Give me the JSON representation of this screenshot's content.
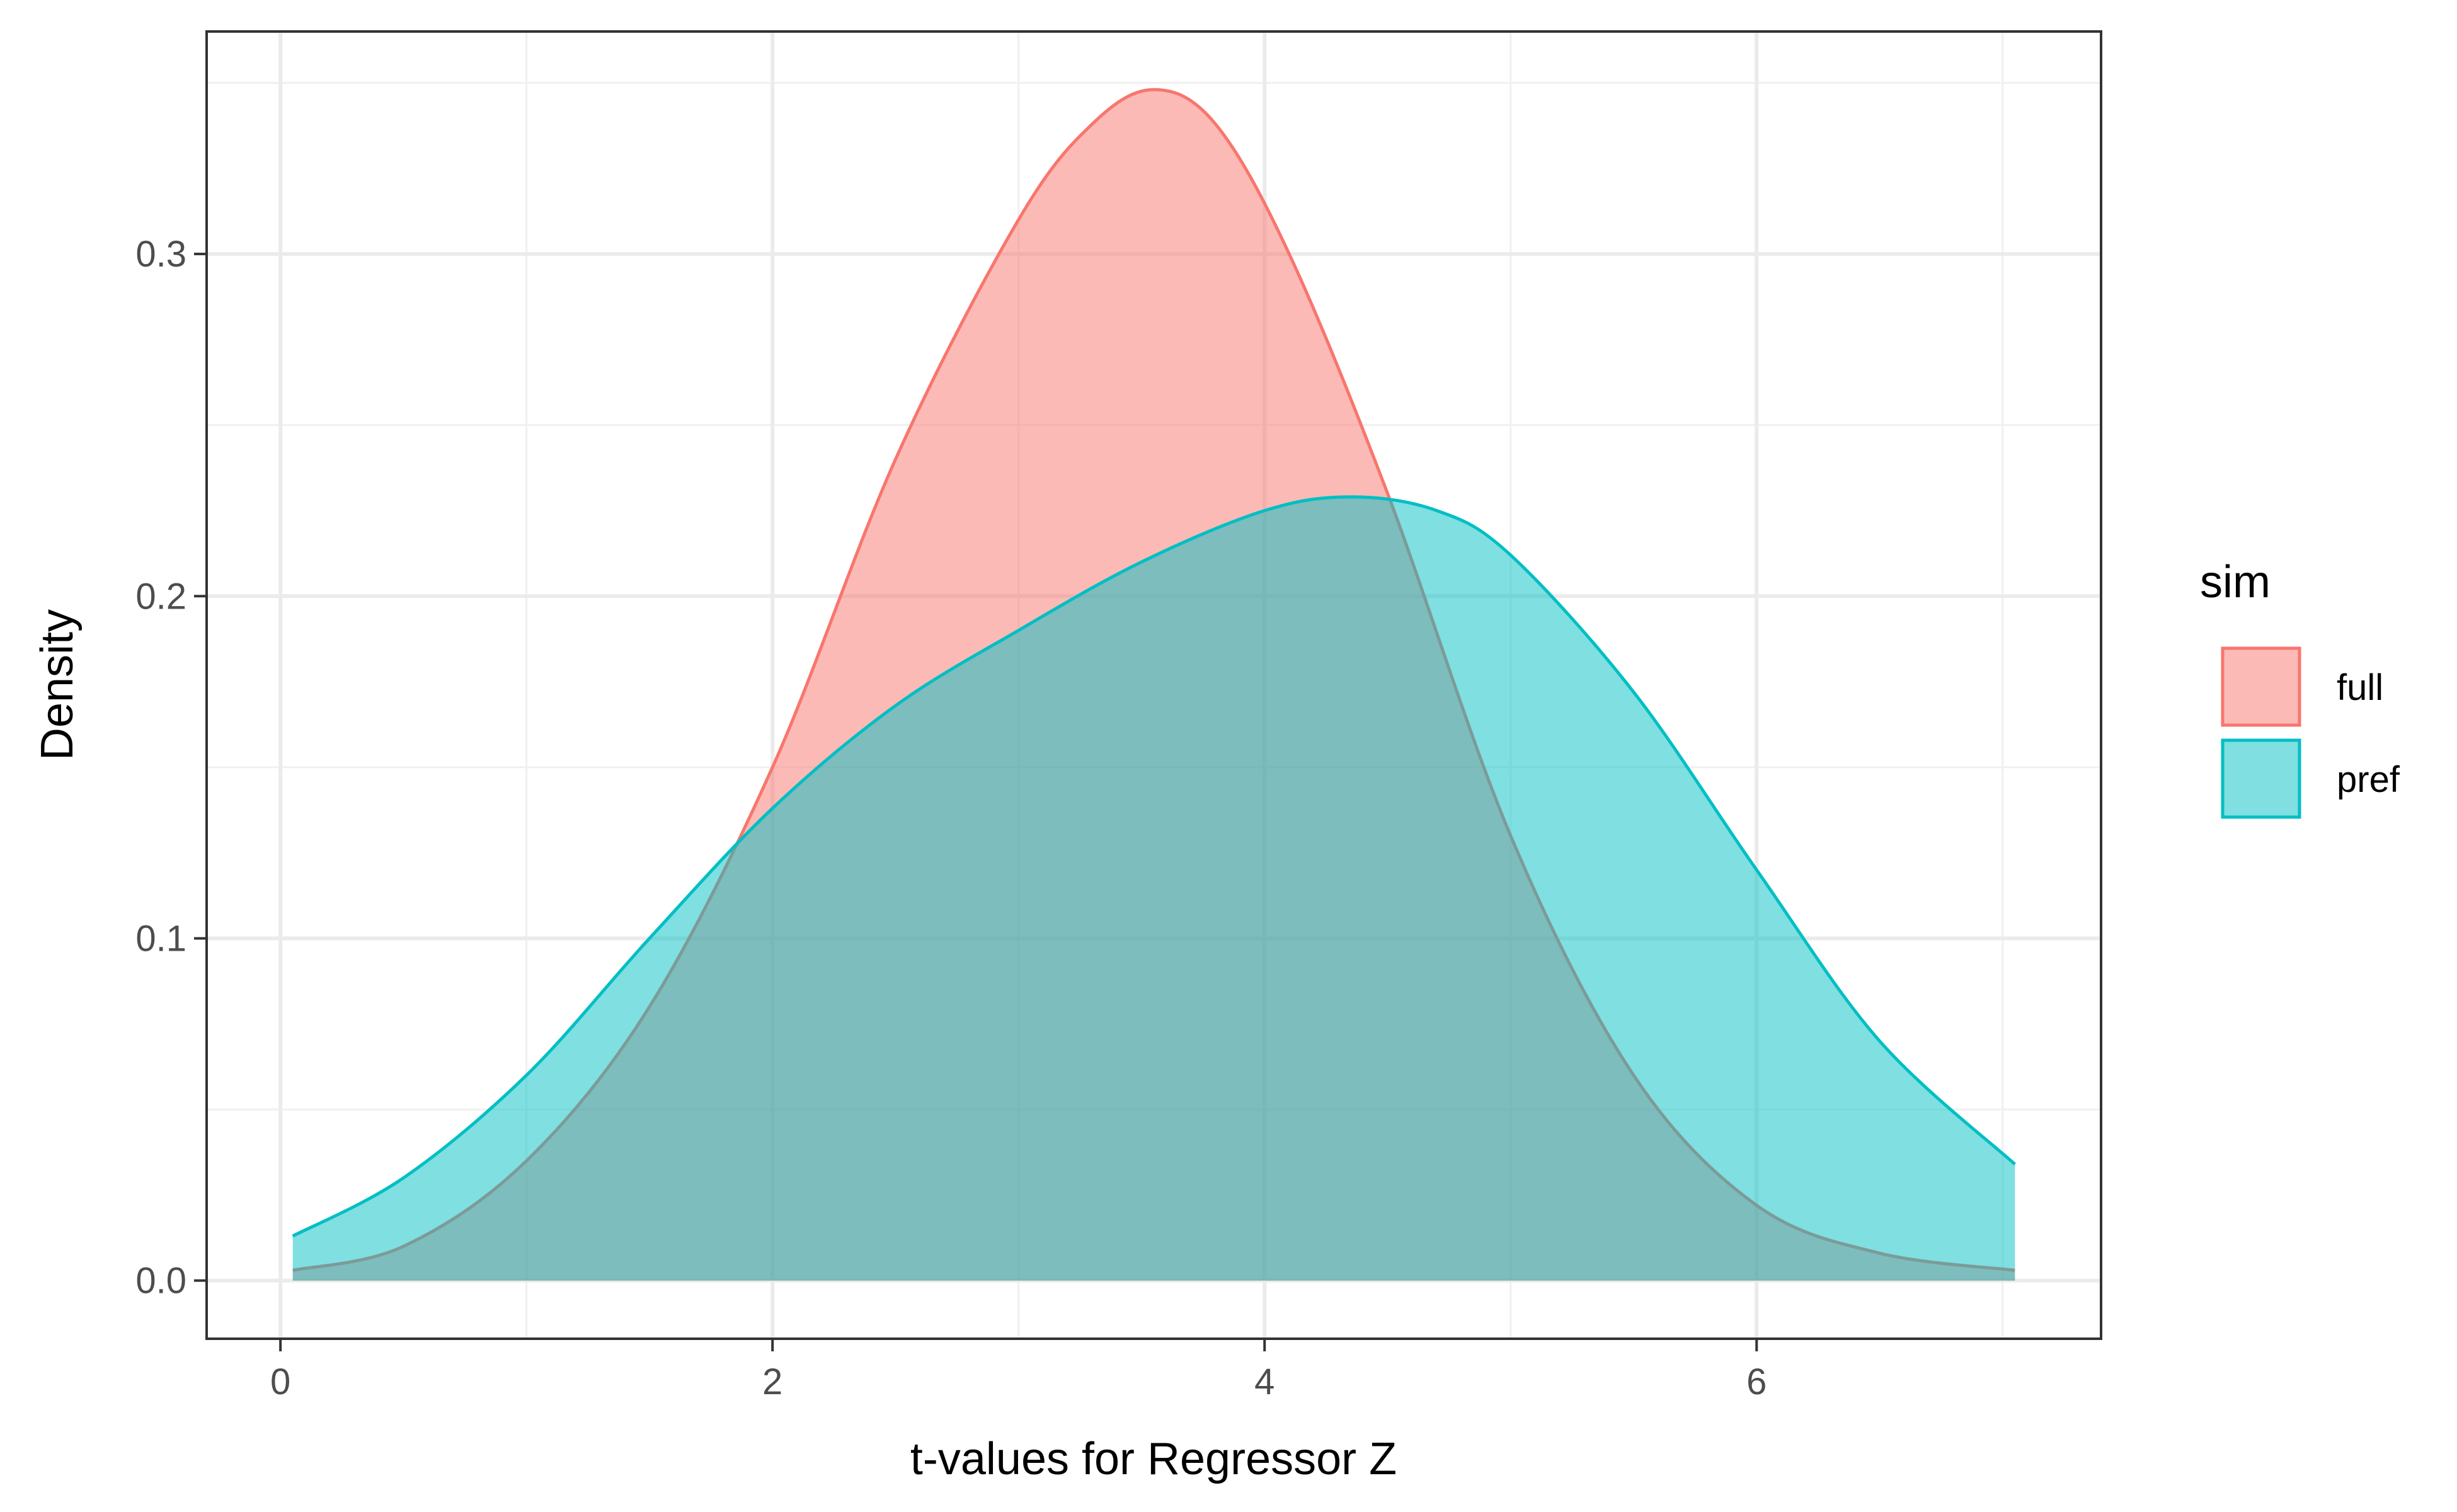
{
  "chart_data": {
    "type": "area",
    "subtype": "density",
    "title": "",
    "xlabel": "t-values for Regressor Z",
    "ylabel": "Density",
    "xlim": [
      -0.3,
      7.4
    ],
    "ylim": [
      -0.017,
      0.365
    ],
    "x_ticks": [
      0,
      2,
      4,
      6
    ],
    "x_tick_labels": [
      "0",
      "2",
      "4",
      "6"
    ],
    "y_ticks": [
      0.0,
      0.1,
      0.2,
      0.3
    ],
    "y_tick_labels": [
      "0.0",
      "0.1",
      "0.2",
      "0.3"
    ],
    "grid": true,
    "legend_position": "right",
    "legend_title": "sim",
    "series": [
      {
        "name": "full",
        "line_color": "#F8766D",
        "fill_color": "#F8766D",
        "fill_opacity": 0.5,
        "x": [
          0.05,
          0.5,
          1.0,
          1.5,
          2.0,
          2.5,
          3.0,
          3.3,
          3.55,
          3.8,
          4.1,
          4.5,
          5.0,
          5.5,
          6.0,
          6.5,
          7.05
        ],
        "y": [
          0.003,
          0.01,
          0.035,
          0.08,
          0.15,
          0.24,
          0.31,
          0.338,
          0.348,
          0.338,
          0.3,
          0.23,
          0.13,
          0.06,
          0.022,
          0.008,
          0.003
        ]
      },
      {
        "name": "pref",
        "line_color": "#00BFC4",
        "fill_color": "#00BFC4",
        "fill_opacity": 0.5,
        "x": [
          0.05,
          0.5,
          1.0,
          1.5,
          2.0,
          2.5,
          3.0,
          3.5,
          4.0,
          4.35,
          4.7,
          5.0,
          5.5,
          6.0,
          6.5,
          7.05
        ],
        "y": [
          0.013,
          0.03,
          0.06,
          0.1,
          0.138,
          0.168,
          0.19,
          0.21,
          0.225,
          0.229,
          0.225,
          0.212,
          0.172,
          0.12,
          0.07,
          0.034
        ]
      }
    ]
  }
}
